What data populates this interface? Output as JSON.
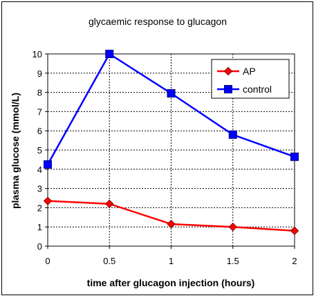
{
  "chart_data": {
    "type": "line",
    "title": "glycaemic response to glucagon",
    "xlabel": "time after glucagon injection (hours)",
    "ylabel": "plasma glucose (mmol/L)",
    "x": [
      0,
      0.5,
      1,
      1.5,
      2
    ],
    "x_tick_labels": [
      "0",
      "0.5",
      "1",
      "1.5",
      "2"
    ],
    "y_tick_labels": [
      "0",
      "1",
      "2",
      "3",
      "4",
      "5",
      "6",
      "7",
      "8",
      "9",
      "10"
    ],
    "xlim": [
      0,
      2
    ],
    "ylim": [
      0,
      10
    ],
    "grid": true,
    "legend_position": "top-right",
    "series": [
      {
        "name": "AP",
        "values": [
          2.35,
          2.2,
          1.15,
          1.0,
          0.8
        ],
        "color": "#ff0000",
        "marker": "diamond"
      },
      {
        "name": "control",
        "values": [
          4.25,
          10.0,
          7.95,
          5.8,
          4.65
        ],
        "color": "#0000ff",
        "marker": "square"
      }
    ]
  }
}
